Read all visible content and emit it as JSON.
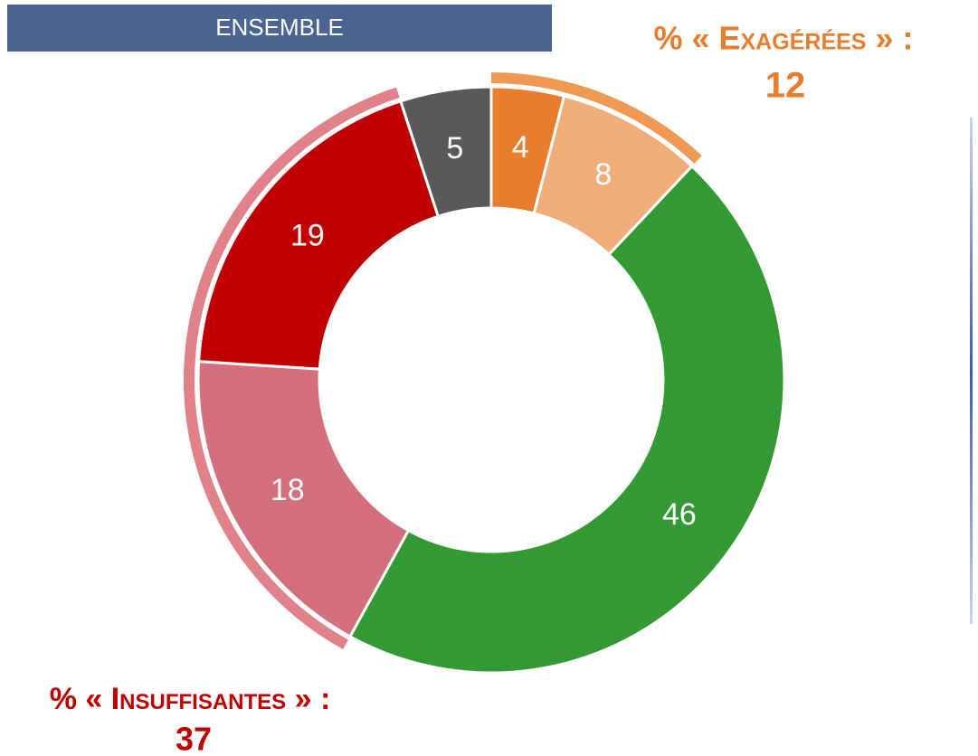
{
  "chart_data": {
    "type": "donut",
    "title": "ENSEMBLE",
    "values": [
      4,
      8,
      46,
      18,
      19,
      5
    ],
    "colors": [
      "#E87D2E",
      "#F2AE7A",
      "#339933",
      "#D4707E",
      "#C00000",
      "#595959"
    ],
    "annotations": [
      {
        "label": "% « Exagérées » :",
        "value": 12,
        "color": "#E87D2E",
        "arc_color": "#EF9955"
      },
      {
        "label": "% « Insuffisantes » :",
        "value": 37,
        "color": "#C00000",
        "arc_color": "#E08088"
      }
    ]
  }
}
